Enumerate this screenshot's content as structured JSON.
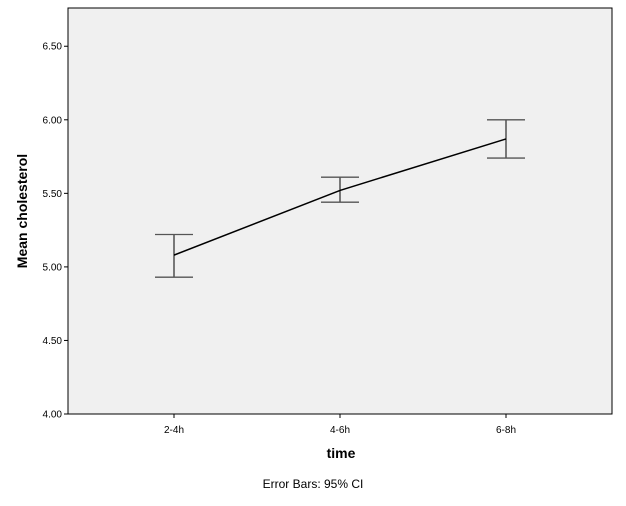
{
  "chart_data": {
    "type": "line",
    "title": "",
    "xlabel": "time",
    "ylabel": "Mean cholesterol",
    "categories": [
      "2-4h",
      "4-6h",
      "6-8h"
    ],
    "series": [
      {
        "values": [
          5.08,
          5.52,
          5.87
        ],
        "ci_lower": [
          4.93,
          5.44,
          5.74
        ],
        "ci_upper": [
          5.22,
          5.61,
          6.0
        ]
      }
    ],
    "yticks": [
      "4.00",
      "4.50",
      "5.00",
      "5.50",
      "6.00",
      "6.50"
    ],
    "ylim": [
      4.0,
      6.76
    ],
    "grid": false,
    "footnote": "Error Bars: 95% CI",
    "colors": {
      "plot_bg": "#f0f0f0",
      "line": "#000000",
      "error_bar": "#000000"
    }
  }
}
